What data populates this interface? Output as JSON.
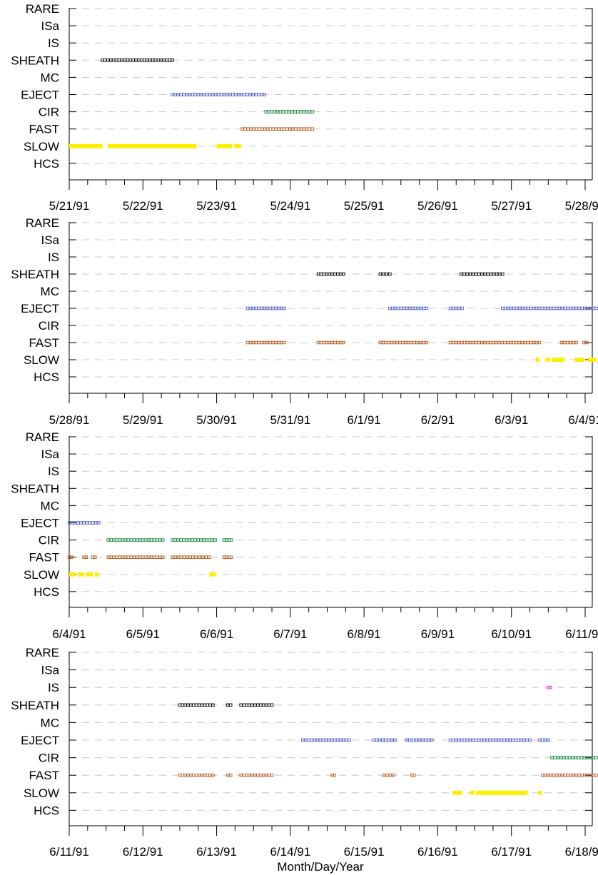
{
  "chart_data": {
    "type": "event-timeline",
    "xlabel": "Month/Day/Year",
    "categories": [
      "RARE",
      "ISa",
      "IS",
      "SHEATH",
      "MC",
      "EJECT",
      "CIR",
      "FAST",
      "SLOW",
      "HCS"
    ],
    "colors": {
      "SHEATH": "#000000",
      "EJECT": "#4a5fc8",
      "CIR": "#138a3c",
      "FAST": "#b85a1c",
      "SLOW": "#ffee00",
      "IS": "#e020d0",
      "grid": "#c8c8c8"
    },
    "grid": true,
    "panels": [
      {
        "xticks": [
          "5/21/91",
          "5/22/91",
          "5/23/91",
          "5/24/91",
          "5/25/91",
          "5/26/91",
          "5/27/91",
          "5/28/91"
        ],
        "segments": [
          {
            "cat": "SHEATH",
            "start": 0.45,
            "end": 1.4
          },
          {
            "cat": "EJECT",
            "start": 1.4,
            "end": 2.65
          },
          {
            "cat": "CIR",
            "start": 2.67,
            "end": 3.3
          },
          {
            "cat": "FAST",
            "start": 2.35,
            "end": 3.3
          },
          {
            "cat": "SLOW",
            "start": 0.0,
            "end": 0.45
          },
          {
            "cat": "SLOW",
            "start": 0.52,
            "end": 1.73
          },
          {
            "cat": "SLOW",
            "start": 2.0,
            "end": 2.21
          },
          {
            "cat": "SLOW",
            "start": 2.24,
            "end": 2.33
          }
        ]
      },
      {
        "xticks": [
          "5/28/91",
          "5/29/91",
          "5/30/91",
          "5/31/91",
          "6/1/91",
          "6/2/91",
          "6/3/91",
          "6/4/91"
        ],
        "segments": [
          {
            "cat": "SHEATH",
            "start": 3.38,
            "end": 3.72
          },
          {
            "cat": "SHEATH",
            "start": 4.22,
            "end": 4.35
          },
          {
            "cat": "SHEATH",
            "start": 5.32,
            "end": 5.88
          },
          {
            "cat": "EJECT",
            "start": 2.42,
            "end": 2.92
          },
          {
            "cat": "EJECT",
            "start": 4.35,
            "end": 4.85
          },
          {
            "cat": "EJECT",
            "start": 5.17,
            "end": 5.33
          },
          {
            "cat": "EJECT",
            "start": 5.88,
            "end": 7.15
          },
          {
            "cat": "FAST",
            "start": 2.42,
            "end": 2.92
          },
          {
            "cat": "FAST",
            "start": 3.38,
            "end": 3.72
          },
          {
            "cat": "FAST",
            "start": 4.22,
            "end": 4.68
          },
          {
            "cat": "FAST",
            "start": 4.72,
            "end": 4.85
          },
          {
            "cat": "FAST",
            "start": 5.17,
            "end": 6.38
          },
          {
            "cat": "FAST",
            "start": 6.68,
            "end": 6.88
          },
          {
            "cat": "FAST",
            "start": 6.98,
            "end": 7.02
          },
          {
            "cat": "SLOW",
            "start": 6.33,
            "end": 6.38
          },
          {
            "cat": "SLOW",
            "start": 6.46,
            "end": 6.52
          },
          {
            "cat": "SLOW",
            "start": 6.55,
            "end": 6.72
          },
          {
            "cat": "SLOW",
            "start": 6.86,
            "end": 6.99
          },
          {
            "cat": "SLOW",
            "start": 7.04,
            "end": 7.15
          }
        ]
      },
      {
        "xticks": [
          "6/4/91",
          "6/5/91",
          "6/6/91",
          "6/7/91",
          "6/8/91",
          "6/9/91",
          "6/10/91",
          "6/11/91"
        ],
        "segments": [
          {
            "cat": "EJECT",
            "start": 0.0,
            "end": 0.4
          },
          {
            "cat": "CIR",
            "start": 0.53,
            "end": 1.27
          },
          {
            "cat": "CIR",
            "start": 1.4,
            "end": 1.98
          },
          {
            "cat": "CIR",
            "start": 2.1,
            "end": 2.2
          },
          {
            "cat": "FAST",
            "start": 0.0,
            "end": 0.03
          },
          {
            "cat": "FAST",
            "start": 0.2,
            "end": 0.23
          },
          {
            "cat": "FAST",
            "start": 0.32,
            "end": 0.35
          },
          {
            "cat": "FAST",
            "start": 0.53,
            "end": 1.27
          },
          {
            "cat": "FAST",
            "start": 1.4,
            "end": 1.72
          },
          {
            "cat": "FAST",
            "start": 1.77,
            "end": 1.9
          },
          {
            "cat": "FAST",
            "start": 2.1,
            "end": 2.2
          },
          {
            "cat": "SLOW",
            "start": 0.0,
            "end": 0.08
          },
          {
            "cat": "SLOW",
            "start": 0.12,
            "end": 0.2
          },
          {
            "cat": "SLOW",
            "start": 0.23,
            "end": 0.32
          },
          {
            "cat": "SLOW",
            "start": 0.35,
            "end": 0.4
          },
          {
            "cat": "SLOW",
            "start": 1.9,
            "end": 1.99
          }
        ]
      },
      {
        "xticks": [
          "6/11/91",
          "6/12/91",
          "6/13/91",
          "6/14/91",
          "6/15/91",
          "6/16/91",
          "6/17/91",
          "6/18/91"
        ],
        "segments": [
          {
            "cat": "IS",
            "start": 6.5,
            "end": 6.53
          },
          {
            "cat": "SHEATH",
            "start": 1.5,
            "end": 1.95
          },
          {
            "cat": "SHEATH",
            "start": 2.15,
            "end": 2.19
          },
          {
            "cat": "SHEATH",
            "start": 2.33,
            "end": 2.75
          },
          {
            "cat": "EJECT",
            "start": 3.17,
            "end": 3.8
          },
          {
            "cat": "EJECT",
            "start": 4.13,
            "end": 4.42
          },
          {
            "cat": "EJECT",
            "start": 4.58,
            "end": 4.62
          },
          {
            "cat": "EJECT",
            "start": 4.67,
            "end": 4.92
          },
          {
            "cat": "EJECT",
            "start": 5.17,
            "end": 6.25
          },
          {
            "cat": "EJECT",
            "start": 6.38,
            "end": 6.5
          },
          {
            "cat": "CIR",
            "start": 6.55,
            "end": 7.15
          },
          {
            "cat": "FAST",
            "start": 1.5,
            "end": 1.95
          },
          {
            "cat": "FAST",
            "start": 2.15,
            "end": 2.19
          },
          {
            "cat": "FAST",
            "start": 2.33,
            "end": 2.75
          },
          {
            "cat": "FAST",
            "start": 3.57,
            "end": 3.6
          },
          {
            "cat": "FAST",
            "start": 4.27,
            "end": 4.4
          },
          {
            "cat": "FAST",
            "start": 4.65,
            "end": 4.68
          },
          {
            "cat": "FAST",
            "start": 6.42,
            "end": 7.15
          },
          {
            "cat": "SLOW",
            "start": 5.2,
            "end": 5.33
          },
          {
            "cat": "SLOW",
            "start": 5.44,
            "end": 5.5
          },
          {
            "cat": "SLOW",
            "start": 5.52,
            "end": 6.22
          },
          {
            "cat": "SLOW",
            "start": 6.36,
            "end": 6.41
          }
        ]
      }
    ]
  }
}
